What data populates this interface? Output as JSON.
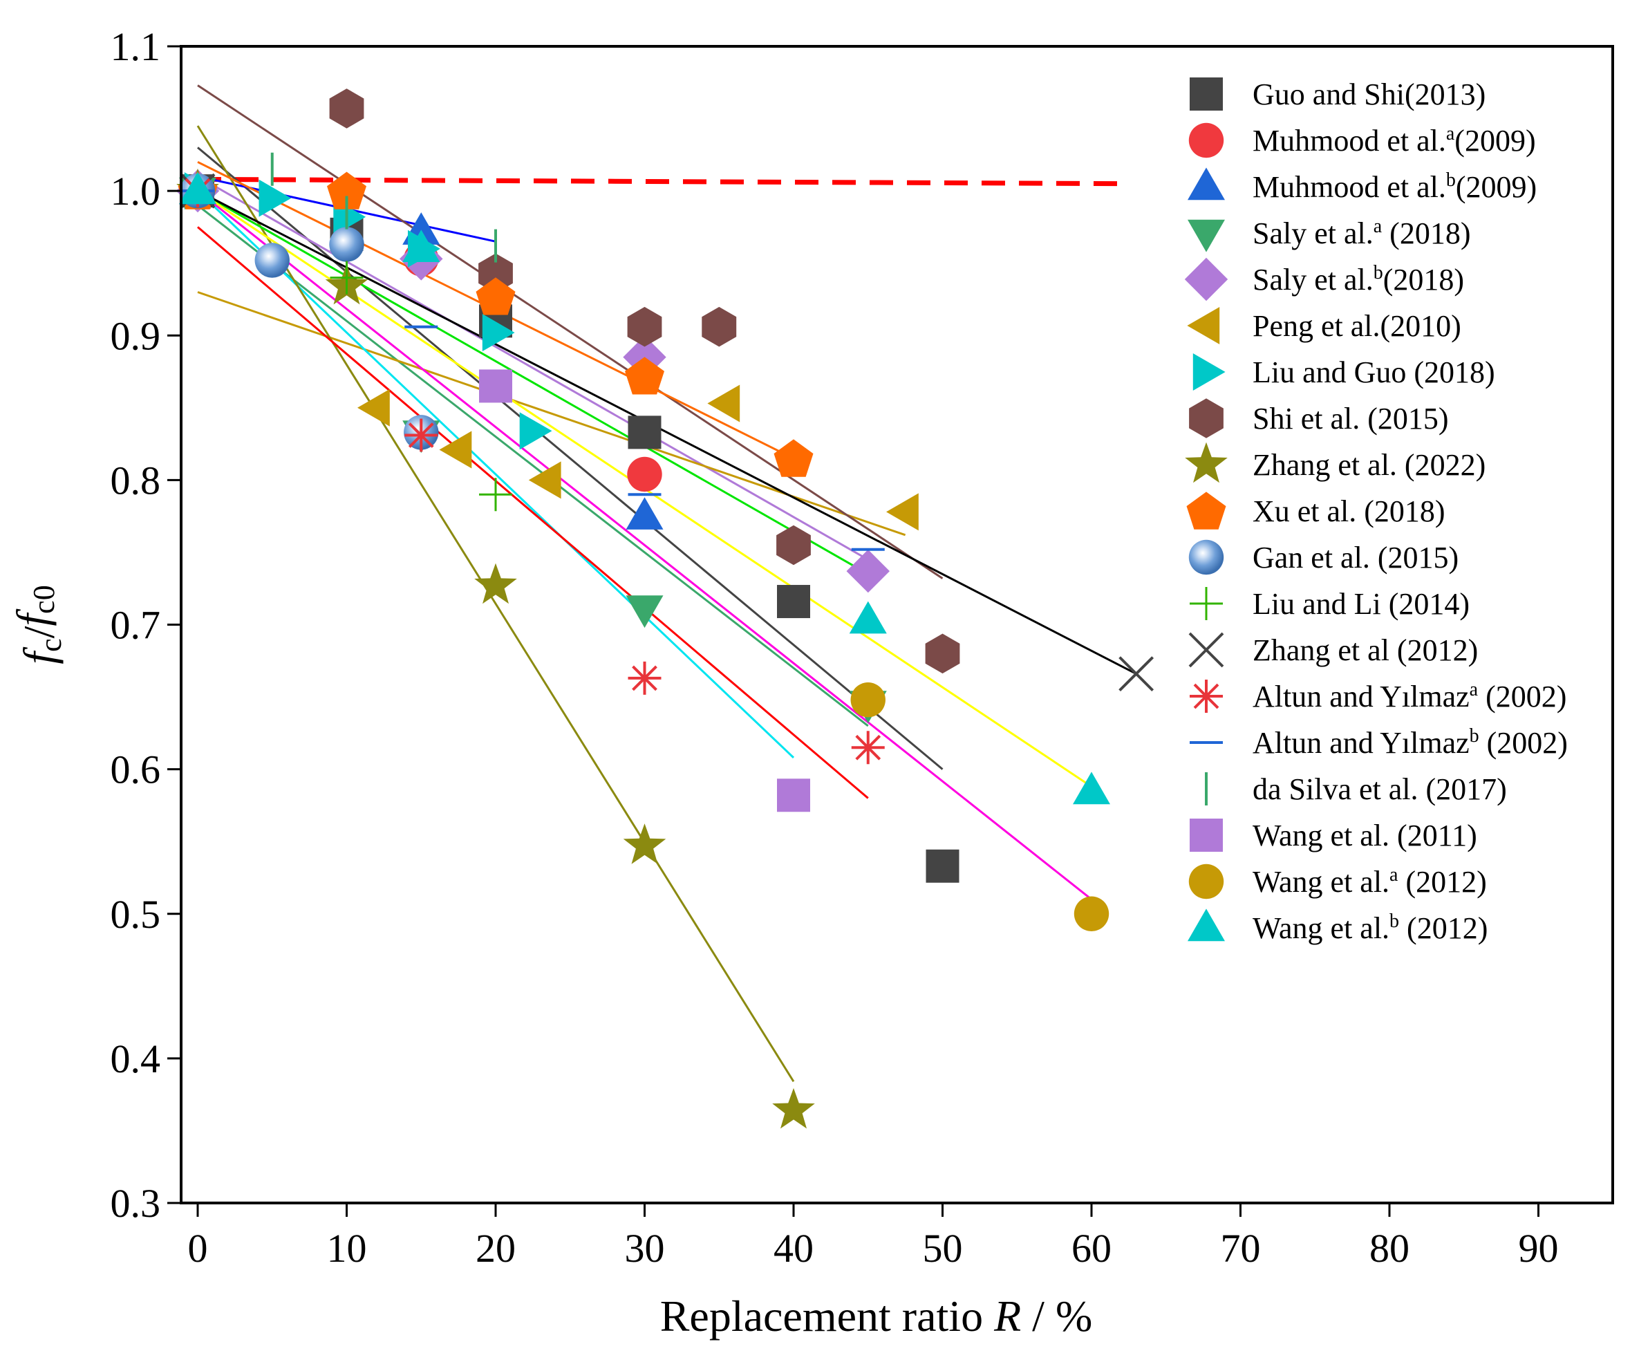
{
  "chart_data": {
    "type": "scatter",
    "xlabel": "Replacement ratio R / %",
    "xlabel_prefix": "Replacement ratio ",
    "xlabel_var": "R",
    "xlabel_suffix": " / %",
    "ylabel": "fc/fc0",
    "xlim": [
      -1,
      95
    ],
    "ylim": [
      0.3,
      1.1
    ],
    "x_ticks": [
      0,
      10,
      20,
      30,
      40,
      50,
      60,
      70,
      80,
      90
    ],
    "y_ticks": [
      0.3,
      0.4,
      0.5,
      0.6,
      0.7,
      0.8,
      0.9,
      1.0,
      1.1
    ],
    "y_tick_labels": [
      "0.3",
      "0.4",
      "0.5",
      "0.6",
      "0.7",
      "0.8",
      "0.9",
      "1.0",
      "1.1"
    ],
    "reference_line": {
      "x": [
        0,
        62
      ],
      "y": [
        1.008,
        1.005
      ],
      "color": "#ff0000",
      "style": "dashed"
    },
    "legend_position": "right",
    "series": [
      {
        "name": "Guo and Shi(2013)",
        "label": "Guo and Shi(2013)",
        "sup": "",
        "tail": "",
        "marker": "square",
        "color": "#444444",
        "points": [
          [
            0,
            1.0
          ],
          [
            10,
            0.97
          ],
          [
            20,
            0.91
          ],
          [
            30,
            0.833
          ],
          [
            40,
            0.716
          ],
          [
            50,
            0.533
          ]
        ],
        "fit": {
          "x": [
            0,
            50
          ],
          "y": [
            1.03,
            0.6
          ],
          "color": "#444444"
        }
      },
      {
        "name": "Muhmood et al.a(2009)",
        "label": "Muhmood et al.",
        "sup": "a",
        "tail": "(2009)",
        "marker": "circle",
        "color": "#f0393e",
        "points": [
          [
            0,
            1.0
          ],
          [
            15,
            0.953
          ],
          [
            30,
            0.804
          ]
        ],
        "fit": null
      },
      {
        "name": "Muhmood et al.b(2009)",
        "label": "Muhmood et al.",
        "sup": "b",
        "tail": "(2009)",
        "marker": "triangle-up",
        "color": "#1f66d6",
        "points": [
          [
            0,
            1.0
          ],
          [
            15,
            0.972
          ],
          [
            30,
            0.775
          ]
        ],
        "fit": {
          "x": [
            0,
            20
          ],
          "y": [
            1.01,
            0.965
          ],
          "color": "#0000ff"
        }
      },
      {
        "name": "Saly et al.a (2018)",
        "label": "Saly et al.",
        "sup": "a",
        "tail": " (2018)",
        "marker": "triangle-down",
        "color": "#3aa86b",
        "points": [
          [
            0,
            1.0
          ],
          [
            15,
            0.832
          ],
          [
            30,
            0.711
          ],
          [
            45,
            0.645
          ]
        ],
        "fit": {
          "x": [
            0,
            45
          ],
          "y": [
            0.99,
            0.63
          ],
          "color": "#3aa86b"
        }
      },
      {
        "name": "Saly et al.b(2018)",
        "label": "Saly et al.",
        "sup": "b",
        "tail": "(2018)",
        "marker": "diamond",
        "color": "#b07ad8",
        "points": [
          [
            0,
            1.0
          ],
          [
            15,
            0.953
          ],
          [
            30,
            0.885
          ],
          [
            45,
            0.737
          ]
        ],
        "fit": {
          "x": [
            0,
            45
          ],
          "y": [
            1.01,
            0.745
          ],
          "color": "#b07ad8"
        }
      },
      {
        "name": "Peng et al.(2010)",
        "label": "Peng et al.(2010)",
        "sup": "",
        "tail": "",
        "marker": "triangle-left",
        "color": "#c69a06",
        "points": [
          [
            12,
            0.85
          ],
          [
            17.5,
            0.821
          ],
          [
            23.5,
            0.8
          ],
          [
            35.5,
            0.853
          ],
          [
            47.5,
            0.778
          ]
        ],
        "fit": {
          "x": [
            0,
            47.5
          ],
          "y": [
            0.93,
            0.762
          ],
          "color": "#c69a06"
        }
      },
      {
        "name": "Liu and Guo (2018)",
        "label": "Liu and Guo (2018)",
        "sup": "",
        "tail": "",
        "marker": "triangle-right",
        "color": "#00c8c8",
        "points": [
          [
            0,
            1.0
          ],
          [
            5,
            0.995
          ],
          [
            10,
            0.982
          ],
          [
            15,
            0.96
          ],
          [
            20,
            0.902
          ],
          [
            22.5,
            0.834
          ]
        ],
        "fit": {
          "x": [
            0,
            40
          ],
          "y": [
            1.0,
            0.608
          ],
          "color": "#00e5f0"
        }
      },
      {
        "name": "Shi et al. (2015)",
        "label": "Shi et al. (2015)",
        "sup": "",
        "tail": "",
        "marker": "hexagon",
        "color": "#7b4a48",
        "points": [
          [
            10,
            1.057
          ],
          [
            20,
            0.943
          ],
          [
            30,
            0.906
          ],
          [
            35,
            0.906
          ],
          [
            40,
            0.755
          ],
          [
            50,
            0.68
          ]
        ],
        "fit": {
          "x": [
            0,
            50
          ],
          "y": [
            1.073,
            0.732
          ],
          "color": "#7b4a48"
        }
      },
      {
        "name": "Zhang et al. (2022)",
        "label": "Zhang et al. (2022)",
        "sup": "",
        "tail": "",
        "marker": "star",
        "color": "#8b8a10",
        "points": [
          [
            0,
            1.0
          ],
          [
            10,
            0.934
          ],
          [
            20,
            0.727
          ],
          [
            30,
            0.547
          ],
          [
            40,
            0.364
          ]
        ],
        "fit": {
          "x": [
            0,
            40
          ],
          "y": [
            1.045,
            0.384
          ],
          "color": "#8b8a10"
        }
      },
      {
        "name": "Xu et al. (2018)",
        "label": "Xu et al. (2018)",
        "sup": "",
        "tail": "",
        "marker": "pentagon",
        "color": "#ff6a00",
        "points": [
          [
            0,
            1.0
          ],
          [
            10,
            1.0
          ],
          [
            20,
            0.927
          ],
          [
            30,
            0.872
          ],
          [
            40,
            0.815
          ]
        ],
        "fit": {
          "x": [
            0,
            40
          ],
          "y": [
            1.02,
            0.815
          ],
          "color": "#ff6a00"
        }
      },
      {
        "name": "Gan et al. (2015)",
        "label": "Gan et al. (2015)",
        "sup": "",
        "tail": "",
        "marker": "sphere",
        "color": "#5b8fcf",
        "points": [
          [
            0,
            1.0
          ],
          [
            5,
            0.952
          ],
          [
            10,
            0.963
          ],
          [
            15,
            0.833
          ]
        ],
        "fit": null
      },
      {
        "name": "Liu and Li (2014)",
        "label": "Liu and Li (2014)",
        "sup": "",
        "tail": "",
        "marker": "plus",
        "color": "#32b400",
        "points": [
          [
            0,
            1.0
          ],
          [
            10,
            0.94
          ],
          [
            20,
            0.79
          ]
        ],
        "fit": {
          "x": [
            0,
            45
          ],
          "y": [
            1.0,
            0.735
          ],
          "color": "#00e500"
        }
      },
      {
        "name": "Zhang et al (2012)",
        "label": "Zhang et al (2012)",
        "sup": "",
        "tail": "",
        "marker": "x",
        "color": "#444444",
        "points": [
          [
            0,
            1.0
          ],
          [
            63,
            0.666
          ]
        ],
        "fit": {
          "x": [
            0,
            63
          ],
          "y": [
            1.0,
            0.666
          ],
          "color": "#000000"
        }
      },
      {
        "name": "Altun and Yılmaza (2002)",
        "label": "Altun and Yılmaz",
        "sup": "a",
        "tail": " (2002)",
        "marker": "asterisk",
        "color": "#e8343a",
        "points": [
          [
            0,
            1.0
          ],
          [
            15,
            0.831
          ],
          [
            30,
            0.663
          ],
          [
            45,
            0.615
          ]
        ],
        "fit": {
          "x": [
            0,
            45
          ],
          "y": [
            0.975,
            0.58
          ],
          "color": "#ff0000"
        }
      },
      {
        "name": "Altun and Yılmazb (2002)",
        "label": "Altun and Yılmaz",
        "sup": "b",
        "tail": " (2002)",
        "marker": "hline",
        "color": "#1f66d6",
        "points": [
          [
            0,
            1.0
          ],
          [
            15,
            0.906
          ],
          [
            30,
            0.79
          ],
          [
            45,
            0.752
          ]
        ],
        "fit": null
      },
      {
        "name": "da Silva et al. (2017)",
        "label": "da Silva et al. (2017)",
        "sup": "",
        "tail": "",
        "marker": "vline",
        "color": "#3aa86b",
        "points": [
          [
            5,
            1.015
          ],
          [
            10,
            0.985
          ],
          [
            20,
            0.962
          ]
        ],
        "fit": null
      },
      {
        "name": "Wang et al. (2011)",
        "label": "Wang et al. (2011)",
        "sup": "",
        "tail": "",
        "marker": "square",
        "color": "#b07ad8",
        "points": [
          [
            20,
            0.865
          ],
          [
            40,
            0.582
          ]
        ],
        "fit": null
      },
      {
        "name": "Wang et al.a (2012)",
        "label": "Wang et al.",
        "sup": "a",
        "tail": " (2012)",
        "marker": "circle",
        "color": "#c69a06",
        "points": [
          [
            45,
            0.648
          ],
          [
            60,
            0.5
          ]
        ],
        "fit": {
          "x": [
            0,
            60
          ],
          "y": [
            1.0,
            0.51
          ],
          "color": "#ff00e0"
        }
      },
      {
        "name": "Wang et al.b (2012)",
        "label": "Wang et al.",
        "sup": "b",
        "tail": " (2012)",
        "marker": "triangle-up",
        "color": "#00c8c8",
        "points": [
          [
            0,
            1.0
          ],
          [
            15,
            0.96
          ],
          [
            45,
            0.703
          ],
          [
            60,
            0.585
          ]
        ],
        "fit": {
          "x": [
            0,
            60
          ],
          "y": [
            1.0,
            0.588
          ],
          "color": "#ffff00"
        }
      }
    ]
  }
}
